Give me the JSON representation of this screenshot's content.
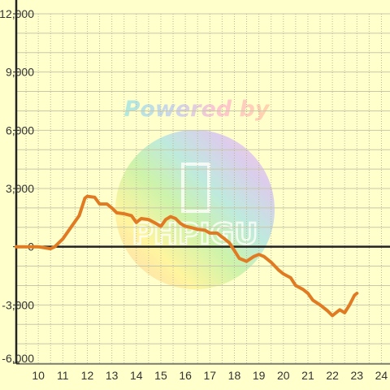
{
  "chart_data": {
    "type": "line",
    "x_ticks": [
      "10",
      "11",
      "12",
      "13",
      "14",
      "15",
      "16",
      "17",
      "18",
      "19",
      "20",
      "21",
      "22",
      "23",
      "24"
    ],
    "y_ticks": [
      "12,000",
      "9,000",
      "6,000",
      "3,000",
      "0",
      "-3,000",
      "-6,000"
    ],
    "xlim": [
      9.1,
      24.35
    ],
    "ylim": [
      -6000,
      12000
    ],
    "grid": true,
    "series": [
      {
        "color": "#e07b24",
        "x": [
          9.1,
          10.0,
          10.5,
          10.67,
          11.0,
          11.33,
          11.67,
          11.9,
          12.0,
          12.3,
          12.5,
          12.8,
          13.0,
          13.2,
          13.5,
          13.8,
          14.0,
          14.2,
          14.5,
          14.8,
          15.0,
          15.2,
          15.4,
          15.6,
          15.8,
          16.0,
          16.2,
          16.5,
          16.8,
          17.0,
          17.3,
          17.6,
          17.8,
          18.0,
          18.2,
          18.5,
          18.8,
          19.0,
          19.2,
          19.5,
          19.8,
          20.0,
          20.3,
          20.5,
          20.8,
          21.0,
          21.2,
          21.5,
          21.8,
          22.0,
          22.2,
          22.3,
          22.5,
          22.7,
          22.9,
          23.0
        ],
        "y": [
          0,
          0,
          -100,
          0,
          400,
          1000,
          1600,
          2500,
          2600,
          2550,
          2200,
          2200,
          2000,
          1750,
          1700,
          1600,
          1250,
          1450,
          1400,
          1200,
          1050,
          1400,
          1550,
          1450,
          1200,
          1050,
          1000,
          900,
          850,
          700,
          700,
          400,
          200,
          -200,
          -600,
          -750,
          -500,
          -400,
          -500,
          -800,
          -1200,
          -1400,
          -1600,
          -2000,
          -2200,
          -2400,
          -2750,
          -3000,
          -3300,
          -3550,
          -3350,
          -3250,
          -3400,
          -3000,
          -2500,
          -2400
        ]
      }
    ]
  },
  "watermark": {
    "text": "Powered by",
    "logo_text": "PHPIGU"
  }
}
